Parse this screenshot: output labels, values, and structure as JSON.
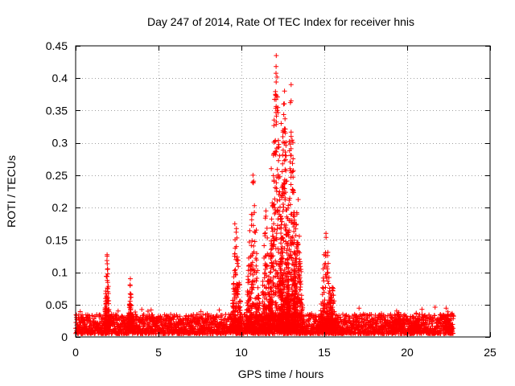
{
  "chart_data": {
    "type": "scatter",
    "title": "Day 247 of 2014, Rate Of TEC Index for receiver hnis",
    "xlabel": "GPS time / hours",
    "ylabel": "ROTI / TECUs",
    "xlim": [
      0,
      25
    ],
    "ylim": [
      0,
      0.45
    ],
    "xticks": [
      0,
      5,
      10,
      15,
      20,
      25
    ],
    "xtick_labels": [
      "0",
      "5",
      "10",
      "15",
      "20",
      "25"
    ],
    "yticks": [
      0,
      0.05,
      0.1,
      0.15,
      0.2,
      0.25,
      0.3,
      0.35,
      0.4,
      0.45
    ],
    "ytick_labels": [
      "0",
      "0.05",
      "0.1",
      "0.15",
      "0.2",
      "0.25",
      "0.3",
      "0.35",
      "0.4",
      "0.45"
    ],
    "grid": true,
    "marker": "+",
    "color": "#ff0000",
    "grid_color": "#a0a0a0",
    "data_range_hours": [
      0,
      22.8
    ],
    "baseline_noise": {
      "min": 0.005,
      "max": 0.035
    },
    "bursts": [
      {
        "center": 1.9,
        "width": 0.15,
        "peak": 0.127
      },
      {
        "center": 3.3,
        "width": 0.1,
        "peak": 0.09
      },
      {
        "center": 9.7,
        "width": 0.3,
        "peak": 0.17
      },
      {
        "center": 10.7,
        "width": 0.4,
        "peak": 0.25
      },
      {
        "center": 11.5,
        "width": 0.3,
        "peak": 0.2
      },
      {
        "center": 12.1,
        "width": 0.4,
        "peak": 0.435
      },
      {
        "center": 12.6,
        "width": 0.3,
        "peak": 0.38
      },
      {
        "center": 13.0,
        "width": 0.3,
        "peak": 0.39
      },
      {
        "center": 13.4,
        "width": 0.3,
        "peak": 0.22
      },
      {
        "center": 15.1,
        "width": 0.35,
        "peak": 0.16
      },
      {
        "center": 15.5,
        "width": 0.2,
        "peak": 0.08
      },
      {
        "center": 19.4,
        "width": 0.3,
        "peak": 0.045
      },
      {
        "center": 20.5,
        "width": 0.3,
        "peak": 0.042
      },
      {
        "center": 22.5,
        "width": 0.2,
        "peak": 0.04
      }
    ],
    "notable_points": [
      {
        "x": 12.1,
        "y": 0.435
      },
      {
        "x": 13.0,
        "y": 0.39
      },
      {
        "x": 12.6,
        "y": 0.38
      },
      {
        "x": 13.0,
        "y": 0.365
      },
      {
        "x": 12.55,
        "y": 0.36
      },
      {
        "x": 12.4,
        "y": 0.33
      },
      {
        "x": 12.6,
        "y": 0.3
      },
      {
        "x": 13.0,
        "y": 0.31
      },
      {
        "x": 12.3,
        "y": 0.28
      },
      {
        "x": 12.7,
        "y": 0.28
      },
      {
        "x": 10.7,
        "y": 0.25
      },
      {
        "x": 11.8,
        "y": 0.26
      },
      {
        "x": 9.6,
        "y": 0.175
      },
      {
        "x": 15.1,
        "y": 0.16
      },
      {
        "x": 1.9,
        "y": 0.127
      },
      {
        "x": 3.3,
        "y": 0.09
      }
    ]
  }
}
